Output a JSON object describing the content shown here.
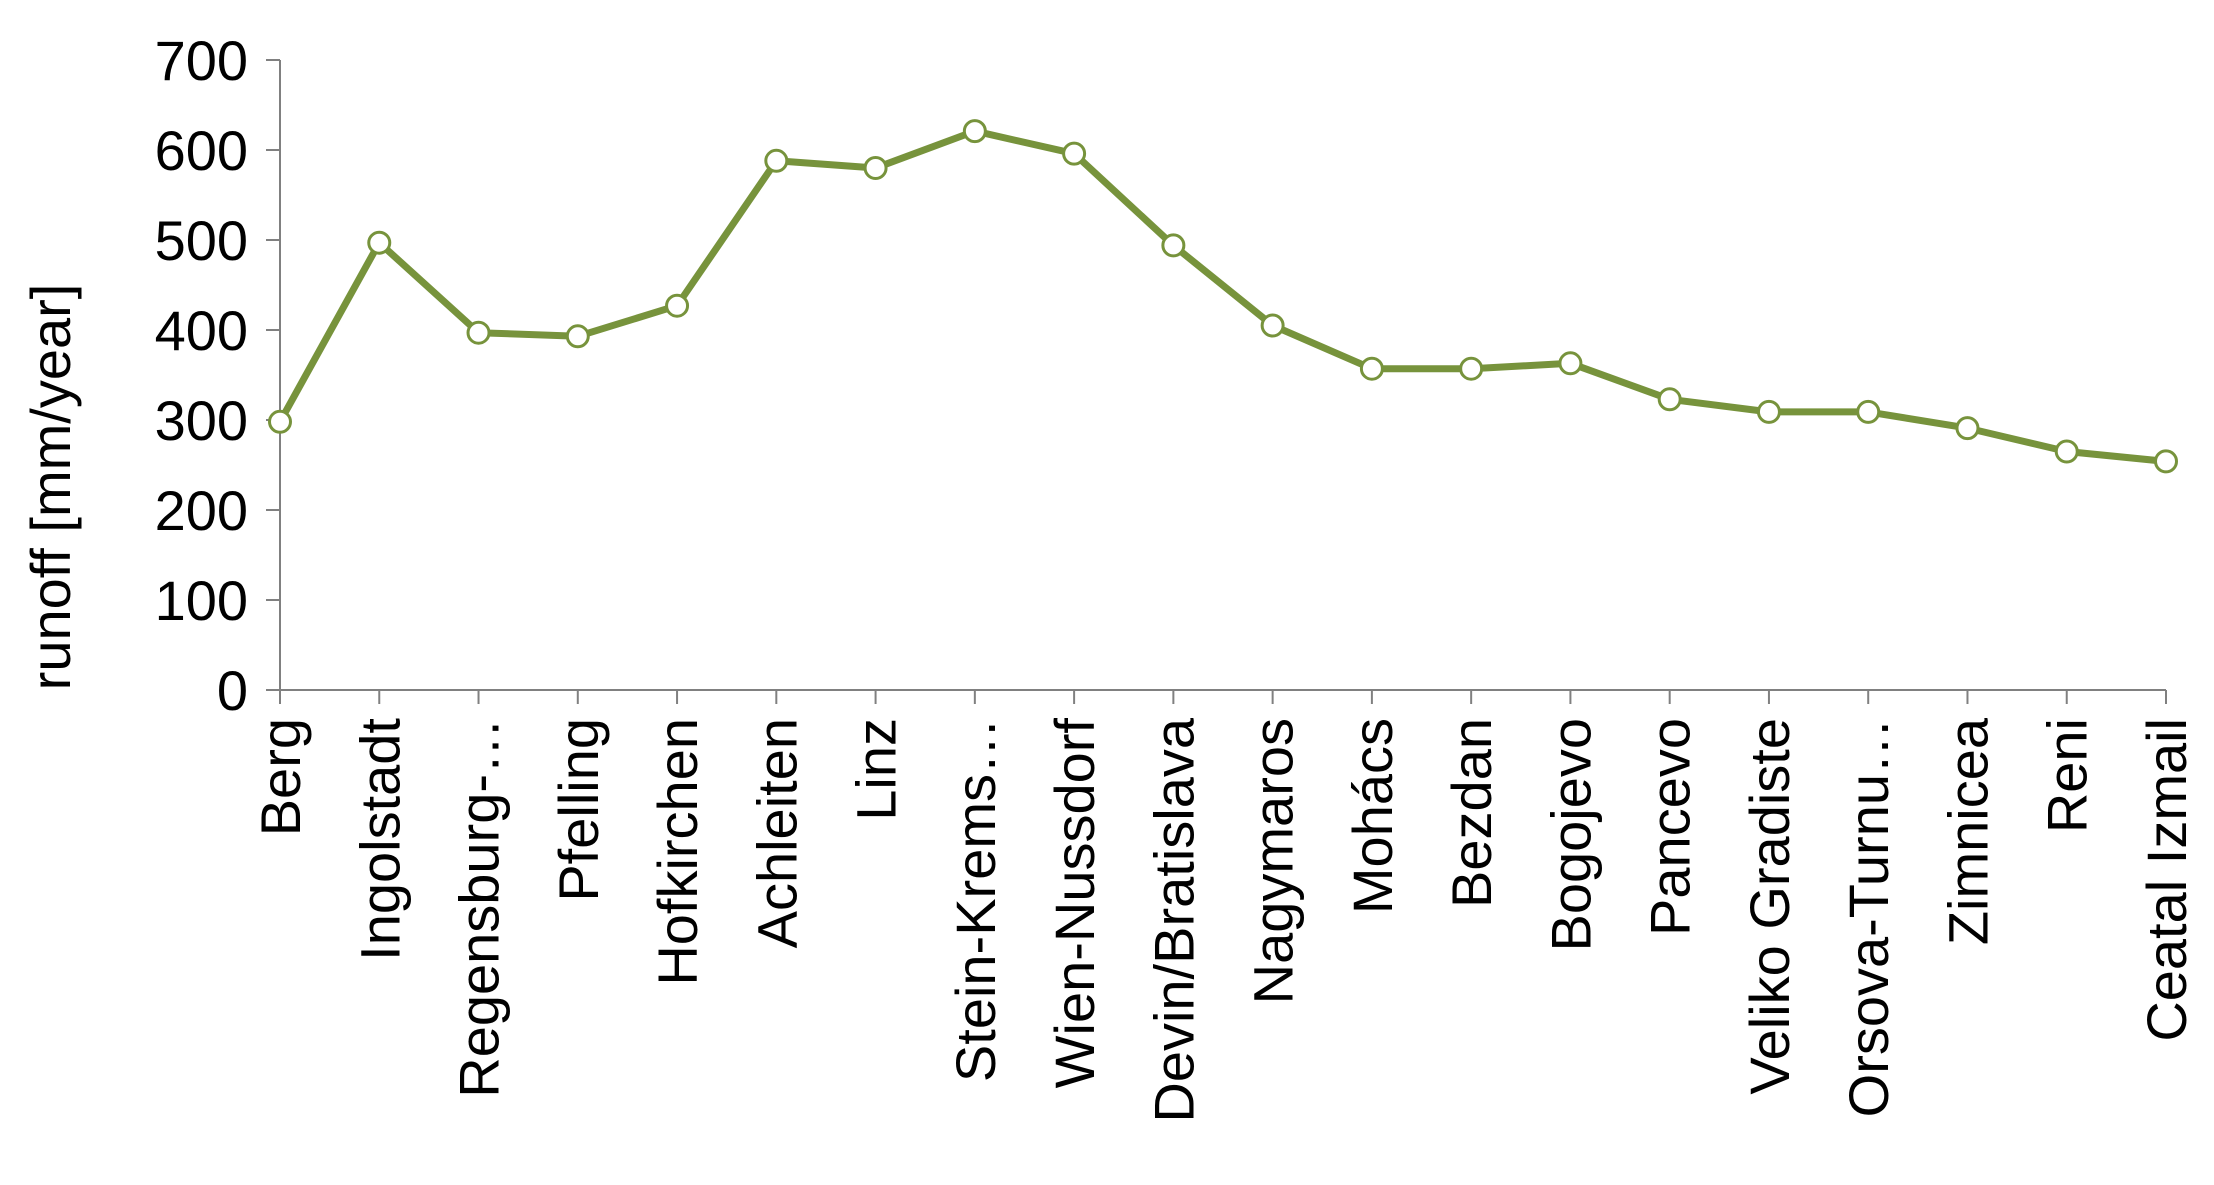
{
  "chart_data": {
    "type": "line",
    "title": "",
    "xlabel": "",
    "ylabel": "runoff [mm/year]",
    "ylim": [
      0,
      700
    ],
    "yticks": [
      "0",
      "100",
      "200",
      "300",
      "400",
      "500",
      "600",
      "700"
    ],
    "grid": false,
    "legend": "none",
    "categories": [
      "Berg",
      "Ingolstadt",
      "Regensburg-…",
      "Pfelling",
      "Hofkirchen",
      "Achleiten",
      "Linz",
      "Stein-Krems…",
      "Wien-Nussdorf",
      "Devin/Bratislava",
      "Nagymaros",
      "Mohács",
      "Bezdan",
      "Bogojevo",
      "Pancevo",
      "Veliko Gradiste",
      "Orsova-Turnu…",
      "Zimnicea",
      "Reni",
      "Ceatal Izmail"
    ],
    "series": [
      {
        "values": [
          298,
          497,
          397,
          393,
          427,
          588,
          580,
          621,
          596,
          494,
          405,
          357,
          357,
          363,
          323,
          309,
          309,
          291,
          265,
          254
        ],
        "color": "#77933c",
        "marker_fill": "#ffffff"
      }
    ],
    "axis_color": "#808080"
  }
}
